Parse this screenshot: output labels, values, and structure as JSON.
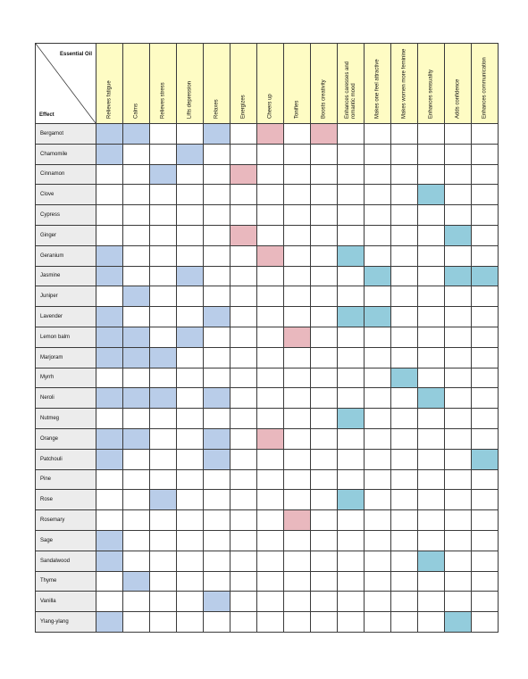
{
  "corner": {
    "top_label": "Essential Oil",
    "bottom_label": "Effect"
  },
  "colors": {
    "blue": "#b9cde9",
    "pink": "#e9b8be",
    "teal": "#93ccdc",
    "header": "#fefcc4",
    "label_bg": "#ececec"
  },
  "columns": [
    "Relieves fatigue",
    "Calms",
    "Relieves stress",
    "Lifts depression",
    "Relaxes",
    "Energizes",
    "Cheers up",
    "Tonifies",
    "Boosts creativity",
    "Enhances caresses and romantic mood",
    "Makes one feel attractive",
    "Makes women more feminine",
    "Enhances sensuality",
    "Adds confidence",
    "Enhances communication"
  ],
  "rows": [
    {
      "name": "Bergamot",
      "cells": {
        "0": "blue",
        "1": "blue",
        "4": "blue",
        "6": "pink",
        "8": "pink"
      }
    },
    {
      "name": "Chamomile",
      "cells": {
        "0": "blue",
        "3": "blue"
      }
    },
    {
      "name": "Cinnamon",
      "cells": {
        "2": "blue",
        "5": "pink"
      }
    },
    {
      "name": "Clove",
      "cells": {
        "12": "teal"
      }
    },
    {
      "name": "Cypress",
      "cells": {}
    },
    {
      "name": "Ginger",
      "cells": {
        "5": "pink",
        "13": "teal"
      }
    },
    {
      "name": "Geranium",
      "cells": {
        "0": "blue",
        "6": "pink",
        "9": "teal"
      }
    },
    {
      "name": "Jasmine",
      "cells": {
        "0": "blue",
        "3": "blue",
        "10": "teal",
        "13": "teal",
        "14": "teal"
      }
    },
    {
      "name": "Juniper",
      "cells": {
        "1": "blue"
      }
    },
    {
      "name": "Lavender",
      "cells": {
        "0": "blue",
        "4": "blue",
        "9": "teal",
        "10": "teal"
      }
    },
    {
      "name": "Lemon balm",
      "cells": {
        "0": "blue",
        "1": "blue",
        "3": "blue",
        "7": "pink"
      }
    },
    {
      "name": "Marjoram",
      "cells": {
        "0": "blue",
        "1": "blue",
        "2": "blue"
      }
    },
    {
      "name": "Myrrh",
      "cells": {
        "11": "teal"
      }
    },
    {
      "name": "Neroli",
      "cells": {
        "0": "blue",
        "1": "blue",
        "2": "blue",
        "4": "blue",
        "12": "teal"
      }
    },
    {
      "name": "Nutmeg",
      "cells": {
        "9": "teal"
      }
    },
    {
      "name": "Orange",
      "cells": {
        "0": "blue",
        "1": "blue",
        "4": "blue",
        "6": "pink"
      }
    },
    {
      "name": "Patchouli",
      "cells": {
        "0": "blue",
        "4": "blue",
        "14": "teal"
      }
    },
    {
      "name": "Pine",
      "cells": {}
    },
    {
      "name": "Rose",
      "cells": {
        "2": "blue",
        "9": "teal"
      }
    },
    {
      "name": "Rosemary",
      "cells": {
        "7": "pink"
      }
    },
    {
      "name": "Sage",
      "cells": {
        "0": "blue"
      }
    },
    {
      "name": "Sandalwood",
      "cells": {
        "0": "blue",
        "12": "teal"
      }
    },
    {
      "name": "Thyme",
      "cells": {
        "1": "blue"
      }
    },
    {
      "name": "Vanilla",
      "cells": {
        "4": "blue"
      }
    },
    {
      "name": "Ylang-ylang",
      "cells": {
        "0": "blue",
        "13": "teal"
      }
    }
  ]
}
